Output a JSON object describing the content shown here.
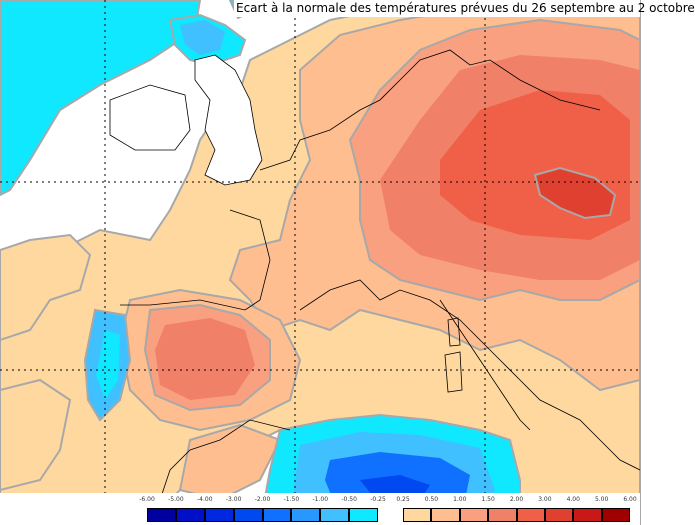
{
  "title": "Ecart à la normale des températures prévues du 26 septembre au 2 octobre",
  "legend": {
    "cold": {
      "ticks": [
        "-6.00",
        "-5.00",
        "-4.00",
        "-3.00",
        "-2.00",
        "-1.50",
        "-1.00",
        "-0.50",
        "-0.25"
      ],
      "colors": [
        "#0000a0",
        "#0010c8",
        "#0028e0",
        "#0048f0",
        "#1070ff",
        "#2898ff",
        "#40c0ff",
        "#10e8ff"
      ]
    },
    "warm": {
      "ticks": [
        "0.25",
        "0.50",
        "1.00",
        "1.50",
        "2.00",
        "3.00",
        "4.00",
        "5.00",
        "6.00"
      ],
      "colors": [
        "#ffd8a0",
        "#ffbe90",
        "#f8a080",
        "#f08068",
        "#f06048",
        "#e04030",
        "#c81818",
        "#a00000"
      ]
    }
  },
  "colors": {
    "ocean_white": "#ffffff",
    "cyan_anomaly": "#10e8ff",
    "light_blue": "#40c0ff",
    "sea_blue": "#1070ff",
    "warm_pale": "#ffd8a0",
    "warm_light": "#ffbe90",
    "warm_mid": "#f8a080",
    "warm_strong": "#f08068",
    "hot": "#f06048",
    "hotter": "#e04030",
    "contour_gray": "#a8a8a8"
  }
}
